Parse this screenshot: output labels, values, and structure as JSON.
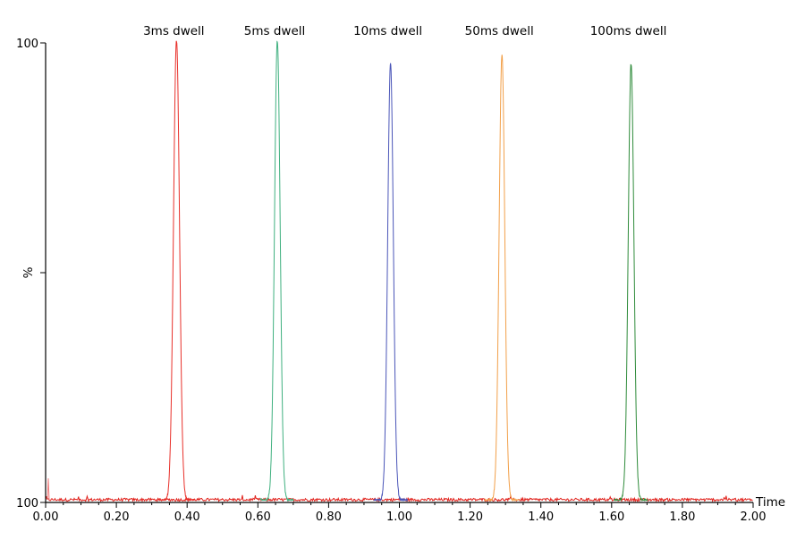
{
  "chart_data": {
    "type": "line",
    "title": "",
    "xlabel": "Time",
    "ylabel": "%",
    "xlim": [
      0.0,
      2.0
    ],
    "ylim": [
      0,
      100
    ],
    "x_ticks": [
      "0.00",
      "0.20",
      "0.40",
      "0.60",
      "0.80",
      "1.00",
      "1.20",
      "1.40",
      "1.60",
      "1.80",
      "2.00"
    ],
    "y_ticks_printed": [
      "100",
      "100"
    ],
    "grid": false,
    "baseline_noise_color": "#e0201a",
    "series": [
      {
        "name": "3ms dwell",
        "color": "#e8302a",
        "center": 0.37,
        "apex": 100,
        "sigma": 0.0085
      },
      {
        "name": "5ms dwell",
        "color": "#3fb07f",
        "center": 0.655,
        "apex": 100,
        "sigma": 0.008
      },
      {
        "name": "10ms dwell",
        "color": "#4a55b8",
        "center": 0.975,
        "apex": 95,
        "sigma": 0.008
      },
      {
        "name": "50ms dwell",
        "color": "#f2a04a",
        "center": 1.29,
        "apex": 97,
        "sigma": 0.008
      },
      {
        "name": "100ms dwell",
        "color": "#2e8b3a",
        "center": 1.655,
        "apex": 95,
        "sigma": 0.008
      }
    ]
  }
}
